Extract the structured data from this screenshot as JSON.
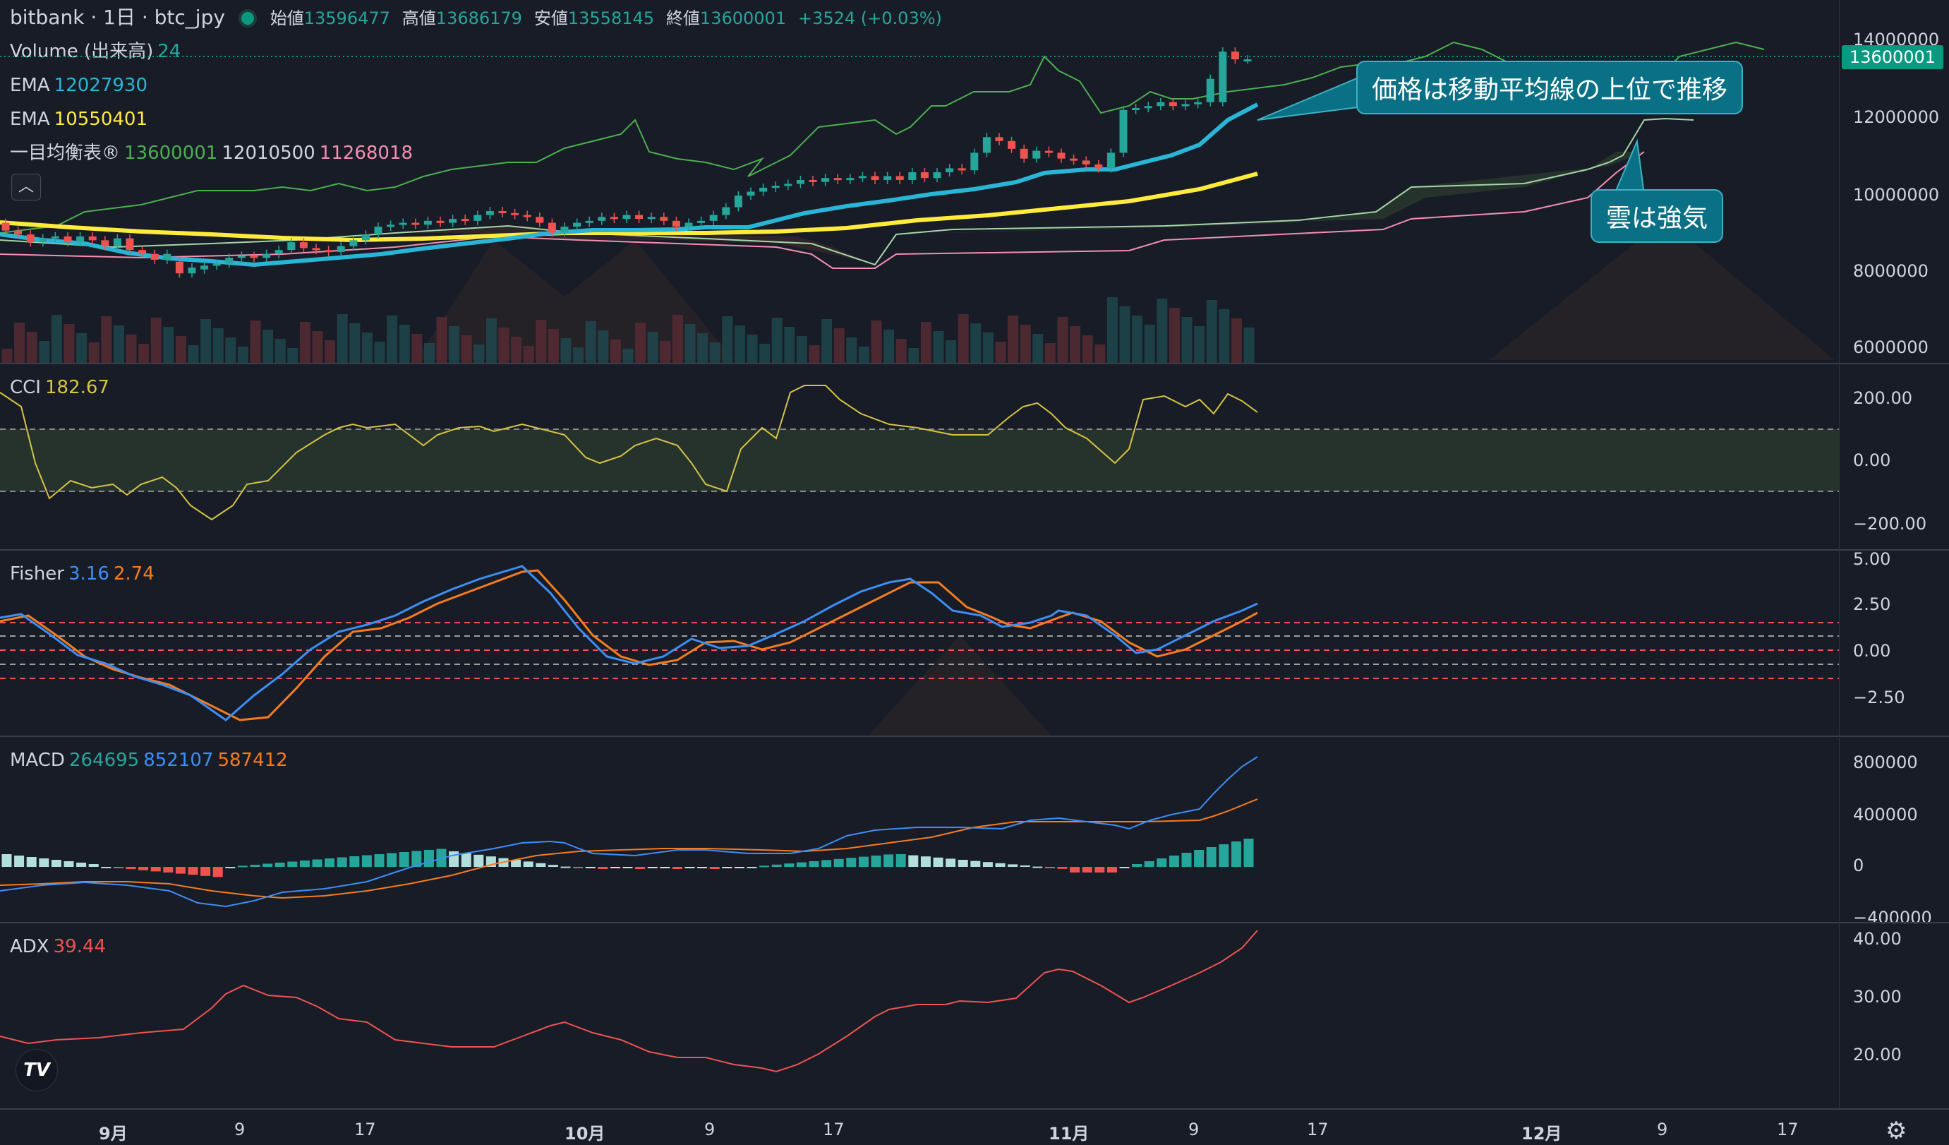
{
  "header": {
    "symbol": "bitbank · 1日 · btc_jpy",
    "open_label": "始値",
    "open_value": "13596477",
    "high_label": "高値",
    "high_value": "13686179",
    "low_label": "安値",
    "low_value": "13558145",
    "close_label": "終値",
    "close_value": "13600001",
    "change": "+3524 (+0.03%)"
  },
  "legends": {
    "volume": {
      "label": "Volume (出来高)",
      "value": "24"
    },
    "ema1": {
      "label": "EMA",
      "value": "12027930"
    },
    "ema2": {
      "label": "EMA",
      "value": "10550401"
    },
    "ichimoku": {
      "label": "一目均衡表®",
      "v1": "13600001",
      "v2": "12010500",
      "v3": "11268018"
    },
    "cci": {
      "label": "CCI",
      "value": "182.67"
    },
    "fisher": {
      "label": "Fisher",
      "v1": "3.16",
      "v2": "2.74"
    },
    "macd": {
      "label": "MACD",
      "v1": "264695",
      "v2": "852107",
      "v3": "587412"
    },
    "adx": {
      "label": "ADX",
      "value": "39.44"
    }
  },
  "price_axis": {
    "ticks": [
      "14000000",
      "12000000",
      "10000000",
      "8000000",
      "6000000"
    ],
    "current": "13600001"
  },
  "cci_axis": [
    "200.00",
    "0.00",
    "−200.00"
  ],
  "fisher_axis": [
    "5.00",
    "2.50",
    "0.00",
    "−2.50"
  ],
  "macd_axis": [
    "800000",
    "400000",
    "0",
    "−400000"
  ],
  "adx_axis": [
    "40.00",
    "30.00",
    "20.00"
  ],
  "time_axis": [
    "9月",
    "9",
    "17",
    "10月",
    "9",
    "17",
    "11月",
    "9",
    "17",
    "12月",
    "9",
    "17"
  ],
  "annotations": {
    "callout1": "価格は移動平均線の上位で推移",
    "callout2": "雲は強気"
  },
  "colors": {
    "up": "#26a69a",
    "down": "#ef5350",
    "ema_fast": "#29b6d6",
    "ema_slow": "#ffeb3b",
    "cci": "#d6c445",
    "fisher1": "#3d8ef5",
    "fisher2": "#f57c1f",
    "adx": "#ef5350"
  },
  "icons": {
    "collapse": "chevron-up-icon",
    "logo": "tradingview-logo-icon",
    "settings": "gear-icon"
  },
  "chart_data": [
    {
      "type": "candlestick",
      "title": "bitbank · 1日 · btc_jpy",
      "ylim": [
        5800000,
        14400000
      ],
      "x_range_days": [
        "2023-08-25",
        "2023-12-27"
      ],
      "candles": [
        {
          "d": 0,
          "o": 9400000,
          "c": 9200000
        },
        {
          "d": 1,
          "o": 9200000,
          "c": 9100000
        },
        {
          "d": 2,
          "o": 9100000,
          "c": 8900000
        },
        {
          "d": 3,
          "o": 8900000,
          "c": 9000000
        },
        {
          "d": 4,
          "o": 9000000,
          "c": 9050000
        },
        {
          "d": 5,
          "o": 9050000,
          "c": 8900000
        },
        {
          "d": 6,
          "o": 8900000,
          "c": 9050000
        },
        {
          "d": 7,
          "o": 9050000,
          "c": 8950000
        },
        {
          "d": 8,
          "o": 8950000,
          "c": 8800000
        },
        {
          "d": 9,
          "o": 8800000,
          "c": 9000000
        },
        {
          "d": 10,
          "o": 9000000,
          "c": 8700000
        },
        {
          "d": 11,
          "o": 8700000,
          "c": 8600000
        },
        {
          "d": 12,
          "o": 8600000,
          "c": 8450000
        },
        {
          "d": 13,
          "o": 8450000,
          "c": 8600000
        },
        {
          "d": 14,
          "o": 8400000,
          "c": 8100000
        },
        {
          "d": 15,
          "o": 8100000,
          "c": 8250000
        },
        {
          "d": 16,
          "o": 8200000,
          "c": 8300000
        },
        {
          "d": 17,
          "o": 8300000,
          "c": 8350000
        },
        {
          "d": 18,
          "o": 8350000,
          "c": 8500000
        },
        {
          "d": 19,
          "o": 8500000,
          "c": 8550000
        },
        {
          "d": 20,
          "o": 8550000,
          "c": 8500000
        },
        {
          "d": 21,
          "o": 8500000,
          "c": 8600000
        },
        {
          "d": 22,
          "o": 8600000,
          "c": 8700000
        },
        {
          "d": 23,
          "o": 8700000,
          "c": 8900000
        },
        {
          "d": 24,
          "o": 8900000,
          "c": 8750000
        },
        {
          "d": 25,
          "o": 8750000,
          "c": 8700000
        },
        {
          "d": 26,
          "o": 8700000,
          "c": 8650000
        },
        {
          "d": 27,
          "o": 8650000,
          "c": 8800000
        },
        {
          "d": 28,
          "o": 8800000,
          "c": 8950000
        },
        {
          "d": 29,
          "o": 8950000,
          "c": 9100000
        },
        {
          "d": 30,
          "o": 9100000,
          "c": 9300000
        },
        {
          "d": 31,
          "o": 9300000,
          "c": 9350000
        },
        {
          "d": 32,
          "o": 9350000,
          "c": 9400000
        },
        {
          "d": 33,
          "o": 9400000,
          "c": 9350000
        },
        {
          "d": 34,
          "o": 9350000,
          "c": 9450000
        },
        {
          "d": 35,
          "o": 9450000,
          "c": 9400000
        },
        {
          "d": 36,
          "o": 9400000,
          "c": 9500000
        },
        {
          "d": 37,
          "o": 9500000,
          "c": 9450000
        },
        {
          "d": 38,
          "o": 9450000,
          "c": 9600000
        },
        {
          "d": 39,
          "o": 9600000,
          "c": 9700000
        },
        {
          "d": 40,
          "o": 9700000,
          "c": 9650000
        },
        {
          "d": 41,
          "o": 9650000,
          "c": 9600000
        },
        {
          "d": 42,
          "o": 9600000,
          "c": 9550000
        },
        {
          "d": 43,
          "o": 9550000,
          "c": 9400000
        },
        {
          "d": 44,
          "o": 9400000,
          "c": 9150000
        },
        {
          "d": 45,
          "o": 9150000,
          "c": 9300000
        },
        {
          "d": 46,
          "o": 9300000,
          "c": 9400000
        },
        {
          "d": 47,
          "o": 9400000,
          "c": 9450000
        },
        {
          "d": 48,
          "o": 9450000,
          "c": 9550000
        },
        {
          "d": 49,
          "o": 9550000,
          "c": 9500000
        },
        {
          "d": 50,
          "o": 9500000,
          "c": 9600000
        },
        {
          "d": 51,
          "o": 9600000,
          "c": 9500000
        },
        {
          "d": 52,
          "o": 9500000,
          "c": 9550000
        },
        {
          "d": 53,
          "o": 9550000,
          "c": 9450000
        },
        {
          "d": 54,
          "o": 9450000,
          "c": 9300000
        },
        {
          "d": 55,
          "o": 9300000,
          "c": 9400000
        },
        {
          "d": 56,
          "o": 9400000,
          "c": 9450000
        },
        {
          "d": 57,
          "o": 9450000,
          "c": 9600000
        },
        {
          "d": 58,
          "o": 9600000,
          "c": 9800000
        },
        {
          "d": 59,
          "o": 9800000,
          "c": 10100000
        },
        {
          "d": 60,
          "o": 10100000,
          "c": 10200000
        },
        {
          "d": 61,
          "o": 10200000,
          "c": 10300000
        },
        {
          "d": 62,
          "o": 10300000,
          "c": 10350000
        },
        {
          "d": 63,
          "o": 10350000,
          "c": 10400000
        },
        {
          "d": 64,
          "o": 10400000,
          "c": 10500000
        },
        {
          "d": 65,
          "o": 10500000,
          "c": 10450000
        },
        {
          "d": 66,
          "o": 10450000,
          "c": 10550000
        },
        {
          "d": 67,
          "o": 10550000,
          "c": 10500000
        },
        {
          "d": 68,
          "o": 10500000,
          "c": 10550000
        },
        {
          "d": 69,
          "o": 10550000,
          "c": 10600000
        },
        {
          "d": 70,
          "o": 10600000,
          "c": 10500000
        },
        {
          "d": 71,
          "o": 10500000,
          "c": 10600000
        },
        {
          "d": 72,
          "o": 10600000,
          "c": 10500000
        },
        {
          "d": 73,
          "o": 10500000,
          "c": 10700000
        },
        {
          "d": 74,
          "o": 10700000,
          "c": 10550000
        },
        {
          "d": 75,
          "o": 10550000,
          "c": 10700000
        },
        {
          "d": 76,
          "o": 10700000,
          "c": 10800000
        },
        {
          "d": 77,
          "o": 10800000,
          "c": 10750000
        },
        {
          "d": 78,
          "o": 10750000,
          "c": 11200000
        },
        {
          "d": 79,
          "o": 11200000,
          "c": 11600000
        },
        {
          "d": 80,
          "o": 11600000,
          "c": 11500000
        },
        {
          "d": 81,
          "o": 11500000,
          "c": 11300000
        },
        {
          "d": 82,
          "o": 11300000,
          "c": 11050000
        },
        {
          "d": 83,
          "o": 11050000,
          "c": 11250000
        },
        {
          "d": 84,
          "o": 11250000,
          "c": 11200000
        },
        {
          "d": 85,
          "o": 11200000,
          "c": 11050000
        },
        {
          "d": 86,
          "o": 11050000,
          "c": 11000000
        },
        {
          "d": 87,
          "o": 11000000,
          "c": 10900000
        },
        {
          "d": 88,
          "o": 10900000,
          "c": 10800000
        },
        {
          "d": 89,
          "o": 10800000,
          "c": 11200000
        },
        {
          "d": 90,
          "o": 11200000,
          "c": 12300000
        },
        {
          "d": 91,
          "o": 12300000,
          "c": 12350000
        },
        {
          "d": 92,
          "o": 12350000,
          "c": 12400000
        },
        {
          "d": 93,
          "o": 12400000,
          "c": 12500000
        },
        {
          "d": 94,
          "o": 12500000,
          "c": 12400000
        },
        {
          "d": 95,
          "o": 12400000,
          "c": 12450000
        },
        {
          "d": 96,
          "o": 12450000,
          "c": 12500000
        },
        {
          "d": 97,
          "o": 12500000,
          "c": 13100000
        },
        {
          "d": 98,
          "o": 12500000,
          "c": 13800000
        },
        {
          "d": 99,
          "o": 13800000,
          "c": 13600000
        },
        {
          "d": 100,
          "o": 13596477,
          "c": 13600001
        }
      ]
    }
  ]
}
